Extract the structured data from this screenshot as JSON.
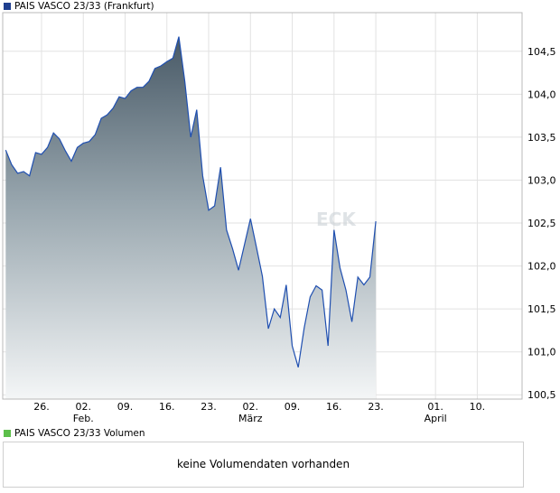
{
  "price_legend": {
    "label": "PAIS VASCO 23/33 (Frankfurt)",
    "color": "#1f3f8f"
  },
  "volume_legend": {
    "label": "PAIS VASCO 23/33 Volumen",
    "color": "#5cbf4a"
  },
  "volume_message": "keine Volumendaten vorhanden",
  "watermark": "ECK",
  "chart_data": {
    "type": "area",
    "title": "PAIS VASCO 23/33 (Frankfurt)",
    "xlabel": "",
    "ylabel": "",
    "x_ticks": [
      {
        "day": 6,
        "label": "26.",
        "sublabel": ""
      },
      {
        "day": 13,
        "label": "02.",
        "sublabel": "Feb."
      },
      {
        "day": 20,
        "label": "09.",
        "sublabel": ""
      },
      {
        "day": 27,
        "label": "16.",
        "sublabel": ""
      },
      {
        "day": 34,
        "label": "23.",
        "sublabel": ""
      },
      {
        "day": 41,
        "label": "02.",
        "sublabel": "März"
      },
      {
        "day": 48,
        "label": "09.",
        "sublabel": ""
      },
      {
        "day": 55,
        "label": "16.",
        "sublabel": ""
      },
      {
        "day": 62,
        "label": "23.",
        "sublabel": ""
      },
      {
        "day": 72,
        "label": "01.",
        "sublabel": "April"
      },
      {
        "day": 79,
        "label": "10.",
        "sublabel": ""
      }
    ],
    "y_ticks": [
      100.5,
      101.0,
      101.5,
      102.0,
      102.5,
      103.0,
      103.5,
      104.0,
      104.5
    ],
    "y_tick_labels": [
      "100,5",
      "101,0",
      "101,5",
      "102,0",
      "102,5",
      "103,0",
      "103,5",
      "104,0",
      "104,5"
    ],
    "xlim": [
      -0.5,
      86.5
    ],
    "ylim": [
      100.45,
      104.95
    ],
    "grid": true,
    "axis_position": "right",
    "series": [
      {
        "name": "PAIS VASCO 23/33 (Frankfurt)",
        "color": "#1f4fb0",
        "points": [
          [
            0,
            103.35
          ],
          [
            1,
            103.18
          ],
          [
            2,
            103.08
          ],
          [
            3,
            103.1
          ],
          [
            4,
            103.05
          ],
          [
            5,
            103.32
          ],
          [
            6,
            103.3
          ],
          [
            7,
            103.38
          ],
          [
            8,
            103.55
          ],
          [
            9,
            103.48
          ],
          [
            10,
            103.34
          ],
          [
            11,
            103.22
          ],
          [
            12,
            103.38
          ],
          [
            13,
            103.43
          ],
          [
            14,
            103.45
          ],
          [
            15,
            103.53
          ],
          [
            16,
            103.72
          ],
          [
            17,
            103.76
          ],
          [
            18,
            103.84
          ],
          [
            19,
            103.97
          ],
          [
            20,
            103.95
          ],
          [
            21,
            104.04
          ],
          [
            22,
            104.08
          ],
          [
            23,
            104.08
          ],
          [
            24,
            104.15
          ],
          [
            25,
            104.3
          ],
          [
            26,
            104.33
          ],
          [
            27,
            104.38
          ],
          [
            28,
            104.42
          ],
          [
            29,
            104.67
          ],
          [
            30,
            104.15
          ],
          [
            31,
            103.5
          ],
          [
            32,
            103.82
          ],
          [
            33,
            103.05
          ],
          [
            34,
            102.65
          ],
          [
            35,
            102.7
          ],
          [
            36,
            103.15
          ],
          [
            37,
            102.42
          ],
          [
            38,
            102.2
          ],
          [
            39,
            101.95
          ],
          [
            40,
            102.25
          ],
          [
            41,
            102.55
          ],
          [
            42,
            102.22
          ],
          [
            43,
            101.88
          ],
          [
            44,
            101.27
          ],
          [
            45,
            101.5
          ],
          [
            46,
            101.4
          ],
          [
            47,
            101.78
          ],
          [
            48,
            101.07
          ],
          [
            49,
            100.82
          ],
          [
            50,
            101.28
          ],
          [
            51,
            101.64
          ],
          [
            52,
            101.77
          ],
          [
            53,
            101.72
          ],
          [
            54,
            101.07
          ],
          [
            55,
            102.42
          ],
          [
            56,
            101.98
          ],
          [
            57,
            101.72
          ],
          [
            58,
            101.35
          ],
          [
            59,
            101.87
          ],
          [
            60,
            101.78
          ],
          [
            61,
            101.87
          ],
          [
            62,
            102.52
          ]
        ]
      }
    ]
  }
}
